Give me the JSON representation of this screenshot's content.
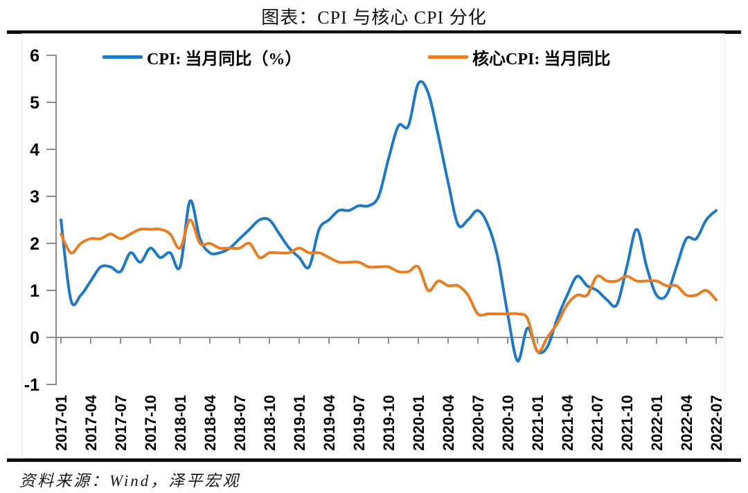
{
  "header": {
    "title": "图表：CPI 与核心 CPI 分化"
  },
  "legend": {
    "items": [
      {
        "label": "CPI: 当月同比（%）",
        "color": "#1F78C4"
      },
      {
        "label": "核心CPI: 当月同比",
        "color": "#E87E23"
      }
    ]
  },
  "footer": {
    "source": "资料来源：Wind，泽平宏观"
  },
  "colors": {
    "cpi_line": "#1F78C4",
    "core_cpi_line": "#E87E23",
    "axis": "#8C8C8C",
    "frame": "#EDEDED",
    "rule": "#0D0D0D",
    "text": "#000000"
  },
  "chart_data": {
    "type": "line",
    "title": "图表：CPI 与核心 CPI 分化",
    "xlabel": "",
    "ylabel": "",
    "ylim": [
      -1,
      6
    ],
    "y_ticks": [
      6,
      5,
      4,
      3,
      2,
      1,
      0,
      -1
    ],
    "grid": false,
    "legend_position": "top",
    "x_tick_every": 3,
    "x_tick_labels": [
      "2017-01",
      "2017-04",
      "2017-07",
      "2017-10",
      "2018-01",
      "2018-04",
      "2018-07",
      "2018-10",
      "2019-01",
      "2019-04",
      "2019-07",
      "2019-10",
      "2020-01",
      "2020-04",
      "2020-07",
      "2020-10",
      "2021-01",
      "2021-04",
      "2021-07",
      "2021-10",
      "2022-01",
      "2022-04",
      "2022-07"
    ],
    "x": [
      "2017-01",
      "2017-02",
      "2017-03",
      "2017-04",
      "2017-05",
      "2017-06",
      "2017-07",
      "2017-08",
      "2017-09",
      "2017-10",
      "2017-11",
      "2017-12",
      "2018-01",
      "2018-02",
      "2018-03",
      "2018-04",
      "2018-05",
      "2018-06",
      "2018-07",
      "2018-08",
      "2018-09",
      "2018-10",
      "2018-11",
      "2018-12",
      "2019-01",
      "2019-02",
      "2019-03",
      "2019-04",
      "2019-05",
      "2019-06",
      "2019-07",
      "2019-08",
      "2019-09",
      "2019-10",
      "2019-11",
      "2019-12",
      "2020-01",
      "2020-02",
      "2020-03",
      "2020-04",
      "2020-05",
      "2020-06",
      "2020-07",
      "2020-08",
      "2020-09",
      "2020-10",
      "2020-11",
      "2020-12",
      "2021-01",
      "2021-02",
      "2021-03",
      "2021-04",
      "2021-05",
      "2021-06",
      "2021-07",
      "2021-08",
      "2021-09",
      "2021-10",
      "2021-11",
      "2021-12",
      "2022-01",
      "2022-02",
      "2022-03",
      "2022-04",
      "2022-05",
      "2022-06",
      "2022-07"
    ],
    "series": [
      {
        "name": "CPI: 当月同比（%）",
        "color": "#1F78C4",
        "values": [
          2.5,
          0.8,
          0.9,
          1.2,
          1.5,
          1.5,
          1.4,
          1.8,
          1.6,
          1.9,
          1.7,
          1.8,
          1.5,
          2.9,
          2.1,
          1.8,
          1.8,
          1.9,
          2.1,
          2.3,
          2.5,
          2.5,
          2.2,
          1.9,
          1.7,
          1.5,
          2.3,
          2.5,
          2.7,
          2.7,
          2.8,
          2.8,
          3.0,
          3.8,
          4.5,
          4.5,
          5.4,
          5.2,
          4.3,
          3.3,
          2.4,
          2.5,
          2.7,
          2.4,
          1.7,
          0.5,
          -0.5,
          0.2,
          -0.3,
          -0.2,
          0.4,
          0.9,
          1.3,
          1.1,
          1.0,
          0.8,
          0.7,
          1.5,
          2.3,
          1.5,
          0.9,
          0.9,
          1.5,
          2.1,
          2.1,
          2.5,
          2.7
        ]
      },
      {
        "name": "核心CPI: 当月同比",
        "color": "#E87E23",
        "values": [
          2.2,
          1.8,
          2.0,
          2.1,
          2.1,
          2.2,
          2.1,
          2.2,
          2.3,
          2.3,
          2.3,
          2.2,
          1.9,
          2.5,
          2.0,
          2.0,
          1.9,
          1.9,
          1.9,
          2.0,
          1.7,
          1.8,
          1.8,
          1.8,
          1.9,
          1.8,
          1.8,
          1.7,
          1.6,
          1.6,
          1.6,
          1.5,
          1.5,
          1.5,
          1.4,
          1.4,
          1.5,
          1.0,
          1.2,
          1.1,
          1.1,
          0.9,
          0.5,
          0.5,
          0.5,
          0.5,
          0.5,
          0.4,
          -0.3,
          0.0,
          0.3,
          0.7,
          0.9,
          0.9,
          1.3,
          1.2,
          1.2,
          1.3,
          1.2,
          1.2,
          1.2,
          1.1,
          1.1,
          0.9,
          0.9,
          1.0,
          0.8
        ]
      }
    ]
  }
}
